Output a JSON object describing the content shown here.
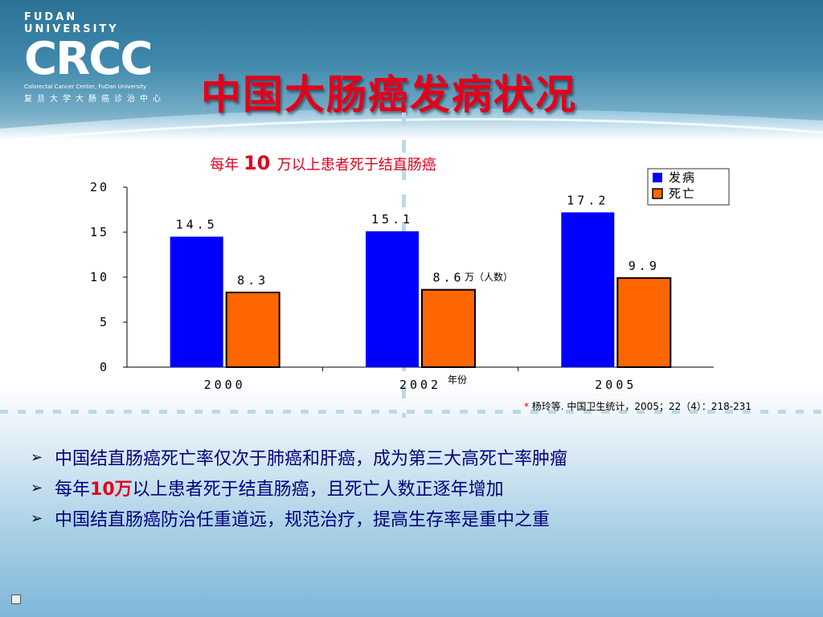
{
  "logo": {
    "university": "FUDAN UNIVERSITY",
    "mark": "CRCC",
    "english": "Colorectal Cancer Center, FuDan University",
    "chinese": "复旦大学大肠癌诊治中心"
  },
  "page_title": "中国大肠癌发病状况",
  "chart_data": {
    "type": "bar",
    "title_prefix": "每年",
    "title_number": "10",
    "title_suffix": "万以上患者死于结直肠癌",
    "categories": [
      "2000",
      "2002",
      "2005"
    ],
    "series": [
      {
        "name": "发病",
        "values": [
          14.5,
          15.1,
          17.2
        ],
        "labels": [
          "14.5",
          "15.1",
          "17.2"
        ],
        "color": "#0000ff"
      },
      {
        "name": "死亡",
        "values": [
          8.3,
          8.6,
          9.9
        ],
        "labels": [
          "8.3",
          "8.6",
          "9.9"
        ],
        "color": "#ff6600"
      }
    ],
    "yticks": [
      "0",
      "5",
      "10",
      "15",
      "20"
    ],
    "ylim": [
      0,
      20
    ],
    "ylabel": "万（人数）",
    "xlabel": "年份",
    "legend_position": "top-right",
    "source_asterisk": "*",
    "source": "杨玲等. 中国卫生统计，2005；22（4）：218-231"
  },
  "bullets": [
    {
      "parts": [
        {
          "text": "中国结直肠癌死亡率仅次于肺癌和肝癌，成为第三大高死亡率肿瘤",
          "hl": false
        }
      ]
    },
    {
      "parts": [
        {
          "text": "每年",
          "hl": false
        },
        {
          "text": "10万",
          "hl": true
        },
        {
          "text": "以上患者死于结直肠癌，且死亡人数正逐年增加",
          "hl": false
        }
      ]
    },
    {
      "parts": [
        {
          "text": "中国结直肠癌防治任重道远，规范治疗，提高生存率是重中之重",
          "hl": false
        }
      ]
    }
  ],
  "colors": {
    "title": "#e3001b",
    "bullet_text": "#00007f"
  }
}
